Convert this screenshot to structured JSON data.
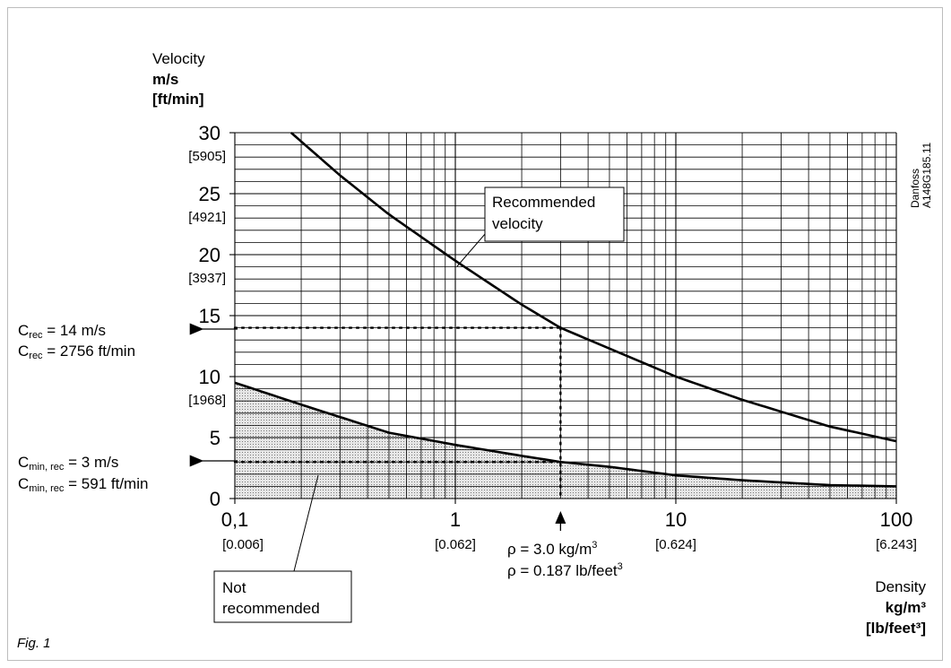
{
  "figure_caption": "Fig. 1",
  "watermark": [
    "Danfoss",
    "A148G185.11"
  ],
  "y_axis": {
    "title": "Velocity",
    "unit": "m/s",
    "unit_imperial": "[ft/min]",
    "ticks": [
      {
        "value": 30,
        "label": "30",
        "label_imperial": "[5905]"
      },
      {
        "value": 25,
        "label": "25",
        "label_imperial": "[4921]"
      },
      {
        "value": 20,
        "label": "20",
        "label_imperial": "[3937]"
      },
      {
        "value": 15,
        "label": "15",
        "label_imperial": ""
      },
      {
        "value": 10,
        "label": "10",
        "label_imperial": "[1968]"
      },
      {
        "value": 5,
        "label": "5",
        "label_imperial": ""
      },
      {
        "value": 0,
        "label": "0",
        "label_imperial": ""
      }
    ]
  },
  "x_axis": {
    "title": "Density",
    "unit": "kg/m³",
    "unit_imperial": "[lb/feet³]",
    "ticks": [
      {
        "value": 0.1,
        "label": "0,1",
        "label_imperial": "[0.006]"
      },
      {
        "value": 1,
        "label": "1",
        "label_imperial": "[0.062]"
      },
      {
        "value": 10,
        "label": "10",
        "label_imperial": "[0.624]"
      },
      {
        "value": 100,
        "label": "100",
        "label_imperial": "[6.243]"
      }
    ]
  },
  "callouts": {
    "recommended": [
      "Recommended",
      "velocity"
    ],
    "not_recommended": [
      "Not",
      "recommended"
    ],
    "c_rec_metric": {
      "sym": "C",
      "sub": "rec",
      "rest": " = 14 m/s"
    },
    "c_rec_imperial": {
      "sym": "C",
      "sub": "rec",
      "rest": " = 2756 ft/min"
    },
    "c_min_metric": {
      "sym": "C",
      "sub": "min, rec",
      "rest": " = 3 m/s"
    },
    "c_min_imperial": {
      "sym": "C",
      "sub": "min, rec",
      "rest": " = 591 ft/min"
    },
    "rho_metric": {
      "pre": "ρ = 3.0 kg/m",
      "sup": "3"
    },
    "rho_imperial": {
      "pre": "ρ = 0.187 lb/feet",
      "sup": "3"
    }
  },
  "colors": {
    "curve": "#000000",
    "grid": "#000000",
    "shade": "#bdbdbd",
    "frame": "#bdbdbd"
  },
  "chart_data": {
    "type": "line",
    "x_scale": "log",
    "xlim": [
      0.1,
      100
    ],
    "ylim": [
      0,
      30
    ],
    "grid": true,
    "series": [
      {
        "x": [
          0.18,
          0.3,
          0.5,
          1,
          2,
          3,
          5,
          10,
          20,
          50,
          100
        ],
        "y": [
          30,
          26.5,
          23.3,
          19.5,
          15.9,
          14,
          12.3,
          10,
          8.1,
          5.9,
          4.7
        ]
      },
      {
        "x": [
          0.1,
          0.2,
          0.5,
          1,
          2,
          3,
          5,
          10,
          20,
          50,
          100
        ],
        "y": [
          9.5,
          7.7,
          5.4,
          4.4,
          3.5,
          3,
          2.6,
          1.9,
          1.5,
          1.1,
          1.0
        ]
      }
    ],
    "reference_point": {
      "x": 3.0,
      "y_rec": 14,
      "y_min": 3
    }
  }
}
